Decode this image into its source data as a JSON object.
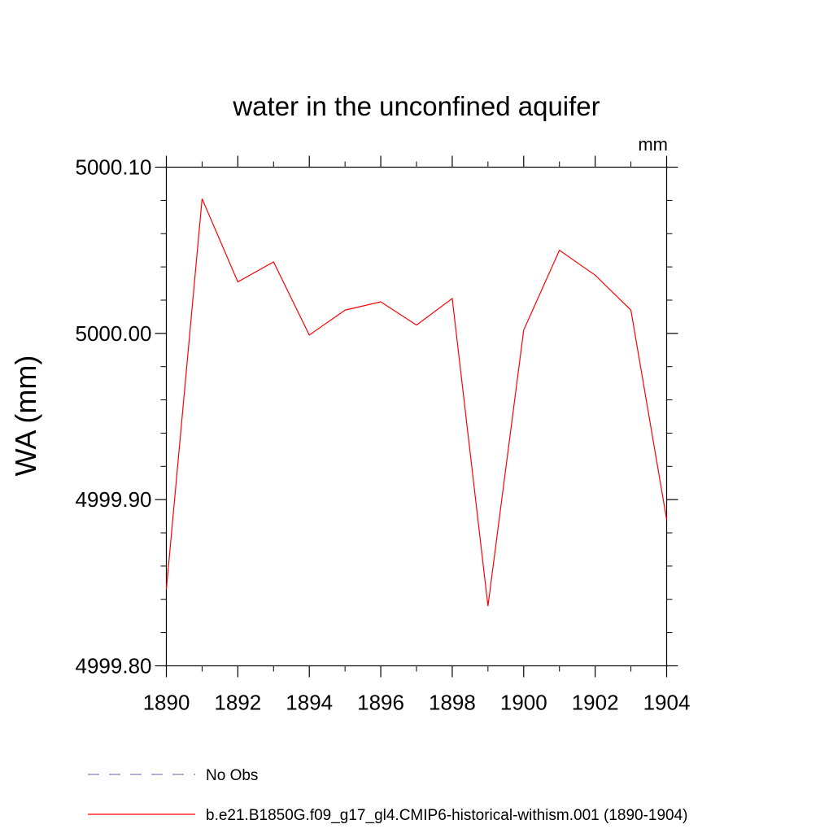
{
  "chart_data": {
    "type": "line",
    "title": "water in the unconfined aquifer",
    "units": "mm",
    "ylabel": "WA  (mm)",
    "xlabel": "",
    "xlim": [
      1890,
      1904
    ],
    "ylim": [
      4999.8,
      5000.1
    ],
    "x_ticks": [
      "1890",
      "1892",
      "1894",
      "1896",
      "1898",
      "1900",
      "1902",
      "1904"
    ],
    "y_ticks": [
      "4999.80",
      "4999.90",
      "5000.00",
      "5000.10"
    ],
    "grid": false,
    "legend_position": "bottom",
    "series": [
      {
        "name": "b.e21.B1850G.f09_g17_gl4.CMIP6-historical-withism.001 (1890-1904)",
        "color": "#ff0000",
        "style": "solid",
        "x": [
          1890,
          1891,
          1892,
          1893,
          1894,
          1895,
          1896,
          1897,
          1898,
          1899,
          1900,
          1901,
          1902,
          1903,
          1904
        ],
        "y": [
          4999.846,
          5000.081,
          5000.031,
          5000.043,
          4999.999,
          5000.014,
          5000.019,
          5000.005,
          5000.021,
          4999.836,
          5000.002,
          5000.05,
          5000.035,
          5000.014,
          4999.888
        ]
      }
    ],
    "legend": [
      {
        "label": "No Obs",
        "color": "#8080c0",
        "style": "dashed"
      },
      {
        "label": "b.e21.B1850G.f09_g17_gl4.CMIP6-historical-withism.001 (1890-1904)",
        "color": "#ff0000",
        "style": "solid"
      }
    ]
  }
}
